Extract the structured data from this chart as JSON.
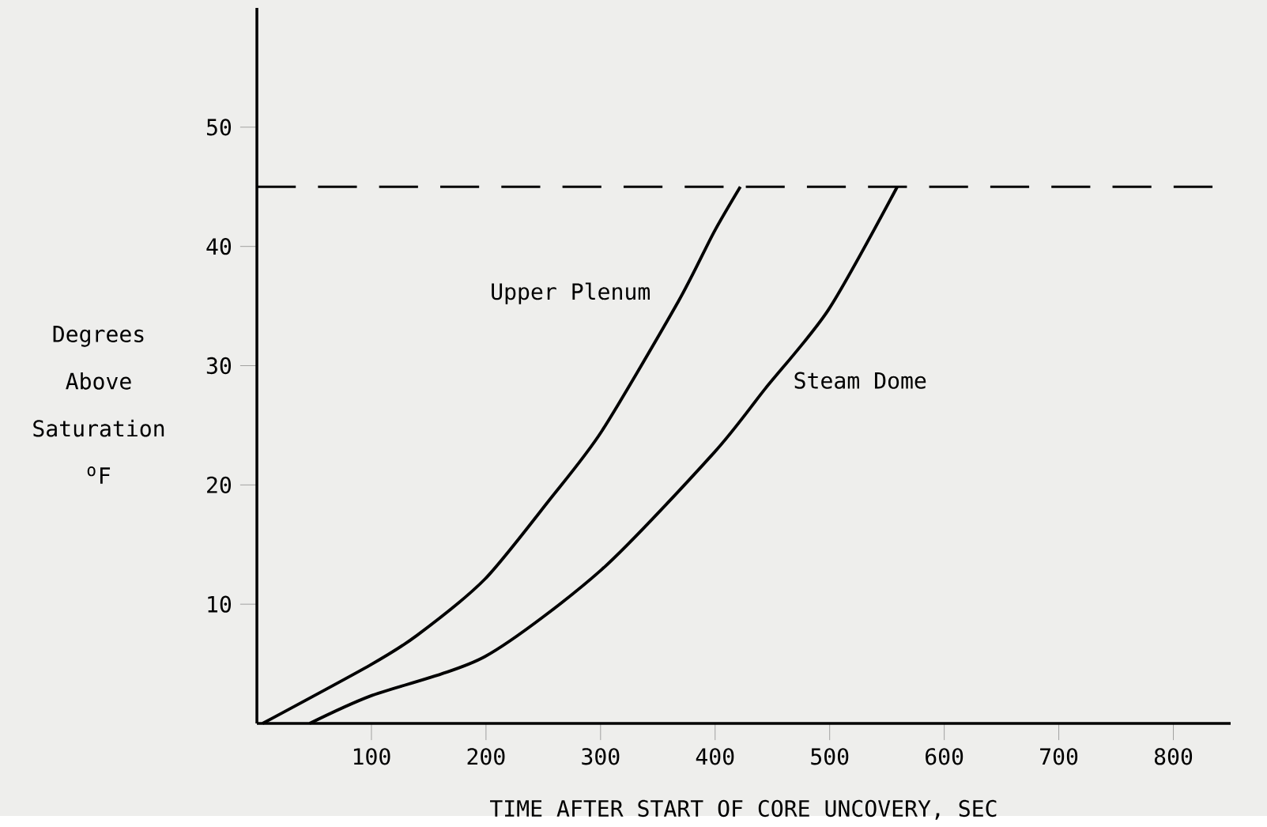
{
  "chart_data": {
    "type": "line",
    "xlabel": "TIME AFTER START OF CORE UNCOVERY, SEC",
    "ylabel": "Degrees Above Saturation $^{o}$F",
    "xlim": [
      0,
      850
    ],
    "ylim": [
      0,
      60
    ],
    "xticks": [
      100,
      200,
      300,
      400,
      500,
      600,
      700,
      800
    ],
    "yticks": [
      10,
      20,
      30,
      40,
      50
    ],
    "grid": false,
    "series": [
      {
        "name": "Upper Plenum",
        "color": "#000000",
        "x": [
          5,
          99,
          140,
          199,
          255,
          301,
          368,
          399,
          422
        ],
        "values": [
          0,
          4.9,
          7.4,
          12.1,
          18.7,
          24.5,
          35.4,
          41.2,
          45
        ]
      },
      {
        "name": "Steam Dome",
        "color": "#000000",
        "x": [
          46,
          99,
          199,
          301,
          399,
          444,
          499,
          559
        ],
        "values": [
          0,
          2.3,
          5.6,
          12.9,
          22.7,
          28.1,
          34.7,
          45
        ]
      }
    ],
    "ref_lines": [
      {
        "axis": "y",
        "value": 45,
        "line_style": "dashed",
        "color": "#000000"
      }
    ]
  }
}
